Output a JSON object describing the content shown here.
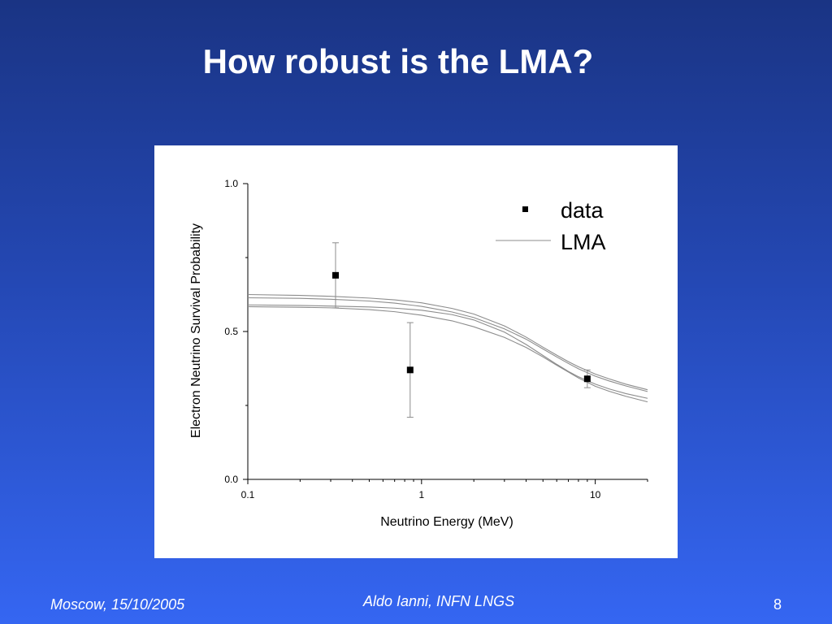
{
  "slide": {
    "title": "How robust is the LMA?",
    "footer_left": "Moscow,  15/10/2005",
    "footer_center": "Aldo Ianni, INFN LNGS",
    "page_number": "8"
  },
  "chart_data": {
    "type": "scatter",
    "xlabel": "Neutrino Energy (MeV)",
    "ylabel": "Electron Neutrino Survival Probability",
    "xscale": "log",
    "xlim": [
      0.1,
      20
    ],
    "ylim": [
      0.0,
      1.0
    ],
    "x_ticks": [
      {
        "value": 0.1,
        "label": "0.1"
      },
      {
        "value": 1,
        "label": "1"
      },
      {
        "value": 10,
        "label": "10"
      }
    ],
    "y_ticks": [
      {
        "value": 0.0,
        "label": "0.0"
      },
      {
        "value": 0.5,
        "label": "0.5"
      },
      {
        "value": 1.0,
        "label": "1.0"
      }
    ],
    "grid": false,
    "legend_position": "top-right",
    "series": [
      {
        "name": "data",
        "kind": "points",
        "x": [
          0.32,
          0.86,
          9.0
        ],
        "y": [
          0.69,
          0.37,
          0.34
        ],
        "y_err": [
          [
            0.11,
            0.11
          ],
          [
            0.16,
            0.16
          ],
          [
            0.03,
            0.03
          ]
        ]
      },
      {
        "name": "LMA",
        "kind": "band",
        "x": [
          0.1,
          0.2,
          0.3,
          0.5,
          0.7,
          1,
          1.5,
          2,
          3,
          4,
          5,
          6,
          7,
          8,
          10,
          12,
          15,
          20
        ],
        "curves": [
          [
            0.625,
            0.622,
            0.619,
            0.613,
            0.607,
            0.597,
            0.578,
            0.559,
            0.519,
            0.481,
            0.447,
            0.42,
            0.398,
            0.381,
            0.356,
            0.34,
            0.322,
            0.303
          ],
          [
            0.59,
            0.588,
            0.586,
            0.583,
            0.579,
            0.572,
            0.557,
            0.539,
            0.498,
            0.456,
            0.419,
            0.389,
            0.365,
            0.347,
            0.322,
            0.306,
            0.29,
            0.274
          ],
          [
            0.584,
            0.582,
            0.58,
            0.574,
            0.567,
            0.555,
            0.536,
            0.516,
            0.48,
            0.446,
            0.414,
            0.386,
            0.363,
            0.343,
            0.315,
            0.298,
            0.281,
            0.262
          ],
          [
            0.614,
            0.612,
            0.609,
            0.603,
            0.596,
            0.585,
            0.566,
            0.547,
            0.509,
            0.474,
            0.441,
            0.414,
            0.392,
            0.374,
            0.349,
            0.333,
            0.316,
            0.297
          ]
        ]
      }
    ]
  },
  "colors": {
    "background_top": "#1a3484",
    "background_bottom": "#3566f2",
    "title_text": "#ffffff",
    "plot_ink": "#000000",
    "curve_line": "#8c8c8c"
  }
}
